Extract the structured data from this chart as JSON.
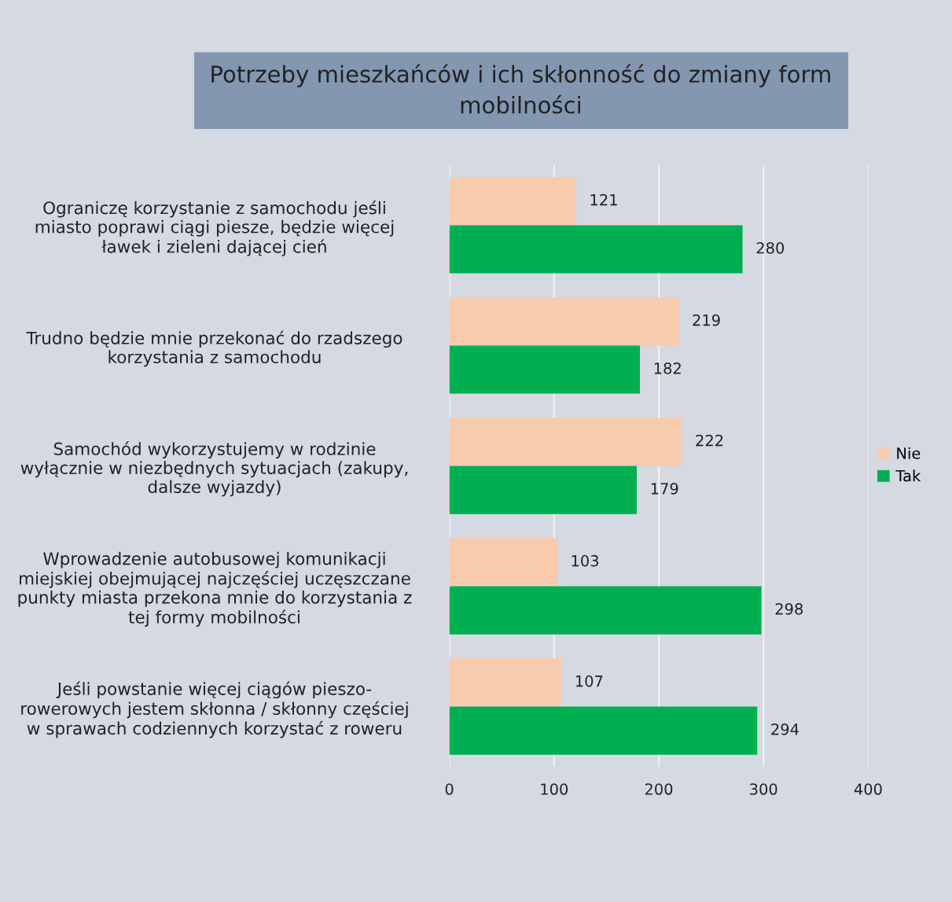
{
  "chart_data": {
    "type": "bar",
    "orientation": "horizontal",
    "title": "Potrzeby mieszkańców i ich skłonność do zmiany form\nmobilności",
    "categories": [
      "Ograniczę korzystanie z samochodu jeśli\nmiasto poprawi ciągi piesze, będzie więcej\nławek i zieleni dającej cień",
      "Trudno będzie mnie przekonać do rzadszego\nkorzystania z samochodu",
      "Samochód wykorzystujemy w rodzinie\nwyłącznie w niezbędnych sytuacjach (zakupy,\ndalsze wyjazdy)",
      "Wprowadzenie autobusowej komunikacji\nmiejskiej obejmującej najczęściej uczęszczane\npunkty miasta przekona mnie do korzystania z\ntej formy mobilności",
      "Jeśli powstanie więcej ciągów pieszo-\nrowerowych jestem skłonna / skłonny częściej\nw sprawach codziennych korzystać z roweru"
    ],
    "series": [
      {
        "name": "Nie",
        "color": "#f8cbad",
        "values": [
          121,
          219,
          222,
          103,
          107
        ]
      },
      {
        "name": "Tak",
        "color": "#00b050",
        "values": [
          280,
          182,
          179,
          298,
          294
        ]
      }
    ],
    "xlim": [
      0,
      400
    ],
    "xticks": [
      0,
      100,
      200,
      300,
      400
    ],
    "grid": "x",
    "legend": "right",
    "data_labels": true
  }
}
